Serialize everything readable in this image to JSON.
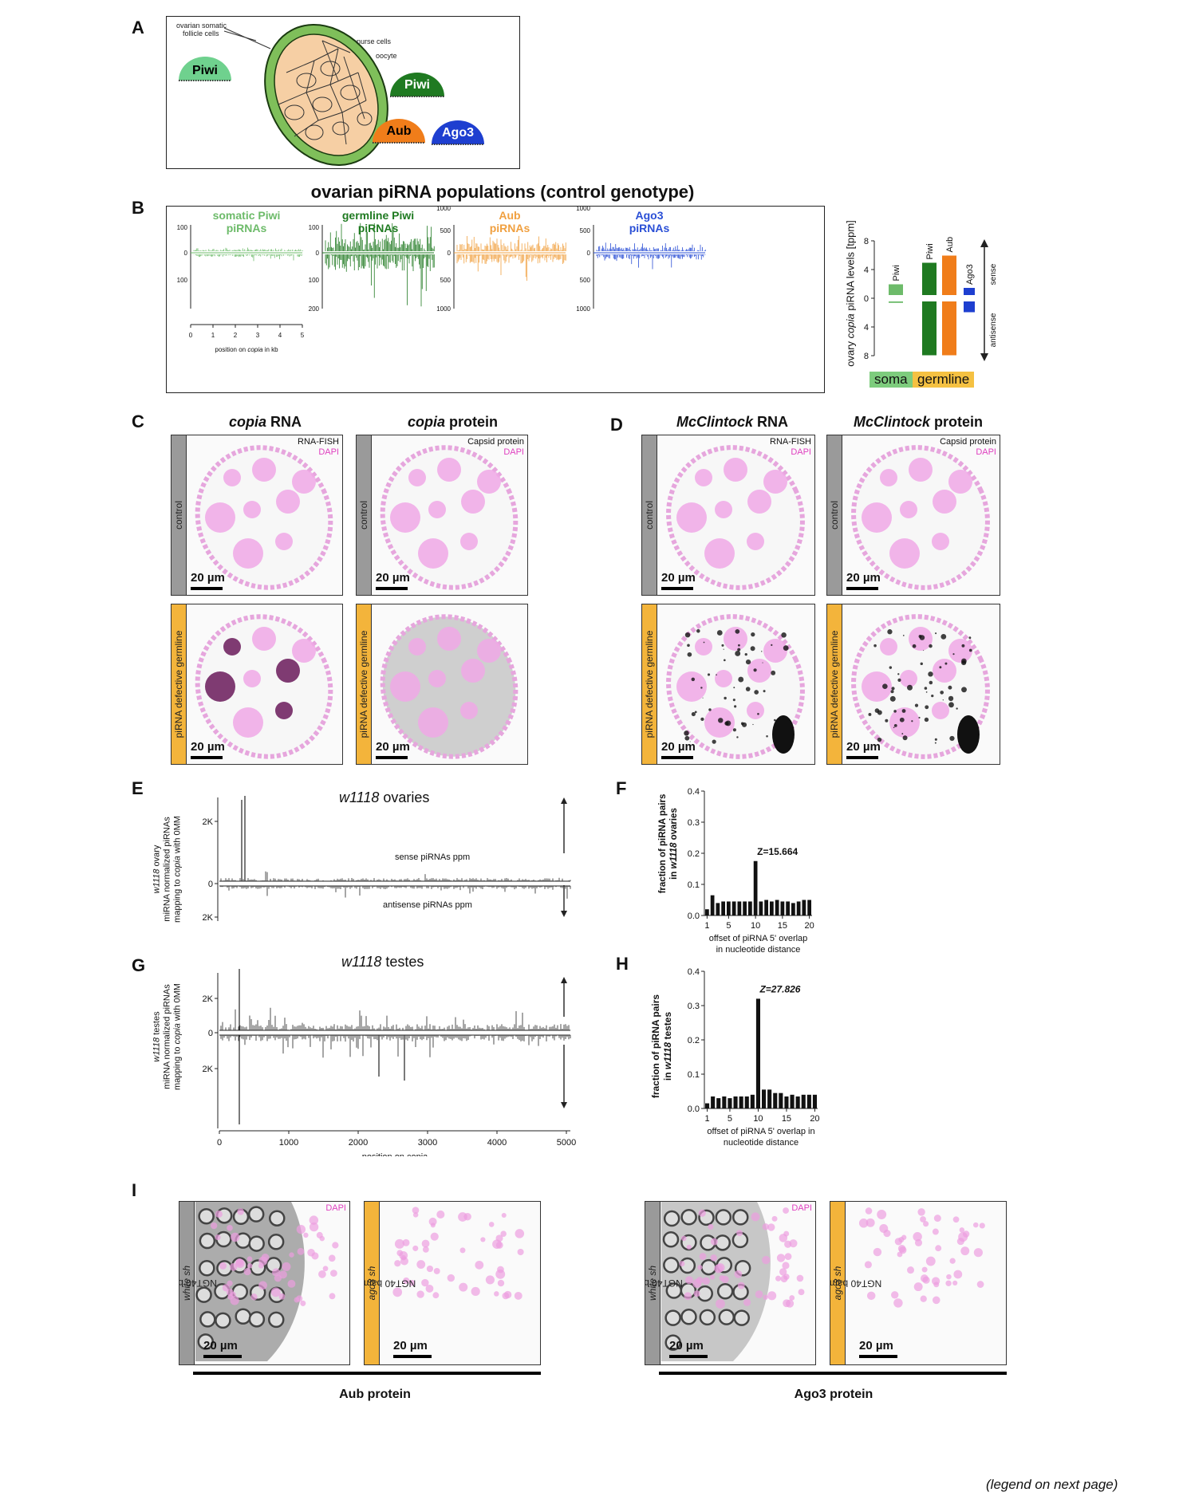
{
  "panels": {
    "A": "A",
    "B": "B",
    "C": "C",
    "D": "D",
    "E": "E",
    "F": "F",
    "G": "G",
    "H": "H",
    "I": "I"
  },
  "panelA": {
    "labels": {
      "follicle": "ovarian somatic\nfollicle cells",
      "nurse": "nurse cells",
      "oocyte": "oocyte",
      "piwi_soma": "Piwi",
      "piwi_germ": "Piwi",
      "aub": "Aub",
      "ago3": "Ago3"
    },
    "colors": {
      "piwi_soma": "#6fd18e",
      "piwi_germ": "#1f7a21",
      "aub": "#f07d1a",
      "ago3": "#1e3fd0",
      "egg": "#f6cfa4",
      "follicle_ring": "#7fbf5a"
    }
  },
  "panelB": {
    "title": "ovarian piRNA populations (control genotype)",
    "tracks": [
      {
        "title1": "somatic Piwi",
        "title2": "piRNAs",
        "color": "#6dbb6a",
        "ticks_top": [
          "100",
          "0"
        ],
        "ticks_bot": [
          "100"
        ],
        "xticks": [
          "0",
          "1",
          "2",
          "3",
          "4",
          "5"
        ],
        "xlabel_pre": "position on ",
        "xlabel_it": "copia",
        "xlabel_post": " in kb"
      },
      {
        "title1": "germline Piwi",
        "title2": "piRNAs",
        "color": "#1f7a21",
        "ticks_top": [
          "100",
          "0"
        ],
        "ticks_bot": [
          "100",
          "200"
        ]
      },
      {
        "title1": "Aub",
        "title2": "piRNAs",
        "color": "#f0a040",
        "ticks_top": [
          "1000",
          "500",
          "0"
        ],
        "ticks_bot": [
          "500",
          "1000"
        ]
      },
      {
        "title1": "Ago3",
        "title2": "piRNAs",
        "color": "#2a4fd6",
        "ticks_top": [
          "1000",
          "500",
          "0"
        ],
        "ticks_bot": [
          "500",
          "1000"
        ]
      }
    ],
    "levels": {
      "ylabel_pre": "ovary ",
      "ylabel_it": "copia",
      "ylabel_post": " piRNA levels  [tppm]",
      "yticks": [
        "8",
        "4",
        "0",
        "4",
        "8"
      ],
      "bars": [
        {
          "name": "Piwi",
          "color": "#6dbb6a",
          "sense": 1.5,
          "antisense": 0.2
        },
        {
          "name": "Piwi",
          "color": "#1f7a21",
          "sense": 4.5,
          "antisense": 7.5
        },
        {
          "name": "Aub",
          "color": "#f07d1a",
          "sense": 5.5,
          "antisense": 7.5
        },
        {
          "name": "Ago3",
          "color": "#1e3fd0",
          "sense": 1.0,
          "antisense": 1.5
        }
      ],
      "sense": "sense",
      "antisense": "antisense",
      "soma": "soma",
      "germline": "germline",
      "soma_color": "#7dcc7d",
      "germline_color": "#f5c142"
    }
  },
  "panelC": {
    "col1_it": "copia",
    "col1_rest": " RNA",
    "col2_it": "copia",
    "col2_rest": " protein",
    "tag1a": "RNA-FISH",
    "tag1b": "DAPI",
    "tag2a": "Capsid protein",
    "tag2b": "DAPI",
    "row1": "control",
    "row2": "piRNA defective germline",
    "scale": "20 µm"
  },
  "panelD": {
    "col1_it": "McClintock",
    "col1_rest": " RNA",
    "col2_it": "McClintock",
    "col2_rest": " protein",
    "tag1a": "RNA-FISH",
    "tag1b": "DAPI",
    "tag2a": "Capsid protein",
    "tag2b": "DAPI",
    "row1": "control",
    "row2": "piRNA defective germline",
    "scale": "20 µm"
  },
  "panelE": {
    "title_it": "w1118",
    "title_rest": "  ovaries",
    "yl1a": "w1118",
    "yl1b": " ovary",
    "yl2": "miRNA normalized piRNAs",
    "yl3a": "mapping to ",
    "yl3b": "copia",
    "yl3c": " with 0MM",
    "yticks": [
      "2K",
      "0",
      "2K"
    ],
    "sense": "sense piRNAs ppm",
    "antisense": "antisense piRNAs ppm"
  },
  "panelF": {
    "ylabel1": "fraction of piRNA pairs",
    "ylabel2a": "in ",
    "ylabel2b": "w1118",
    "ylabel2c": " ovaries",
    "yticks": [
      "0.0",
      "0.1",
      "0.2",
      "0.3",
      "0.4"
    ],
    "xticks": [
      "1",
      "5",
      "10",
      "15",
      "20"
    ],
    "xlabel1": "offset of piRNA 5' overlap",
    "xlabel2": "in nucleotide distance",
    "z": "Z=15.664"
  },
  "panelG": {
    "title_it": "w1118",
    "title_rest": "  testes",
    "yl1a": "w1118",
    "yl1b": "  testes",
    "yl2": "miRNA normalized piRNAs",
    "yl3a": "mapping to ",
    "yl3b": "copia",
    "yl3c": " with 0MM",
    "yticks": [
      "2K",
      "0",
      "2K"
    ],
    "xticks": [
      "0",
      "1000",
      "2000",
      "3000",
      "4000",
      "5000"
    ],
    "xlabel": "position on copia"
  },
  "panelH": {
    "ylabel1": "fraction of piRNA pairs",
    "ylabel2a": "in ",
    "ylabel2b": "w1118",
    "ylabel2c": " testes",
    "yticks": [
      "0.0",
      "0.1",
      "0.2",
      "0.3",
      "0.4"
    ],
    "xticks": [
      "1",
      "5",
      "10",
      "15",
      "20"
    ],
    "xlabel1": "offset of piRNA 5' overlap in",
    "xlabel2": "nucleotide distance",
    "z": "Z=27.826"
  },
  "panelI": {
    "row_ctrl_a": "NGT40 bam > ",
    "row_ctrl_b": "white sh",
    "row_kd_a": "NGT40 bam > aub & ",
    "row_kd_b": "ago3 sh",
    "dapi": "DAPI",
    "scale": "20 µm",
    "aub": "Aub protein",
    "ago3": "Ago3 protein"
  },
  "chart_data": [
    {
      "type": "bar",
      "title": "w1118 ovaries",
      "xlabel": "offset of piRNA 5' overlap in nucleotide distance",
      "ylabel": "fraction of piRNA pairs in w1118 ovaries",
      "ylim": [
        0,
        0.4
      ],
      "x": [
        1,
        2,
        3,
        4,
        5,
        6,
        7,
        8,
        9,
        10,
        11,
        12,
        13,
        14,
        15,
        16,
        17,
        18,
        19,
        20
      ],
      "values": [
        0.02,
        0.065,
        0.04,
        0.045,
        0.045,
        0.045,
        0.045,
        0.045,
        0.045,
        0.175,
        0.045,
        0.05,
        0.045,
        0.05,
        0.045,
        0.045,
        0.04,
        0.045,
        0.05,
        0.05
      ],
      "annotation": "Z=15.664"
    },
    {
      "type": "bar",
      "title": "w1118 testes",
      "xlabel": "offset of piRNA 5' overlap in nucleotide distance",
      "ylabel": "fraction of piRNA pairs in w1118 testes",
      "ylim": [
        0,
        0.4
      ],
      "x": [
        1,
        2,
        3,
        4,
        5,
        6,
        7,
        8,
        9,
        10,
        11,
        12,
        13,
        14,
        15,
        16,
        17,
        18,
        19,
        20
      ],
      "values": [
        0.015,
        0.035,
        0.03,
        0.035,
        0.03,
        0.035,
        0.035,
        0.035,
        0.04,
        0.32,
        0.055,
        0.055,
        0.045,
        0.045,
        0.035,
        0.04,
        0.035,
        0.04,
        0.04,
        0.04
      ],
      "annotation": "Z=27.826"
    },
    {
      "type": "bar",
      "title": "ovary copia piRNA levels",
      "ylabel": "ovary copia piRNA levels [tppm]",
      "ylim": [
        -8,
        8
      ],
      "categories": [
        "Piwi",
        "Piwi",
        "Aub",
        "Ago3"
      ],
      "series": [
        {
          "name": "sense",
          "values": [
            1.5,
            4.5,
            5.5,
            1.0
          ]
        },
        {
          "name": "antisense",
          "values": [
            -0.2,
            -7.5,
            -7.5,
            -1.5
          ]
        }
      ]
    }
  ],
  "legend_note": "(legend on next page)"
}
